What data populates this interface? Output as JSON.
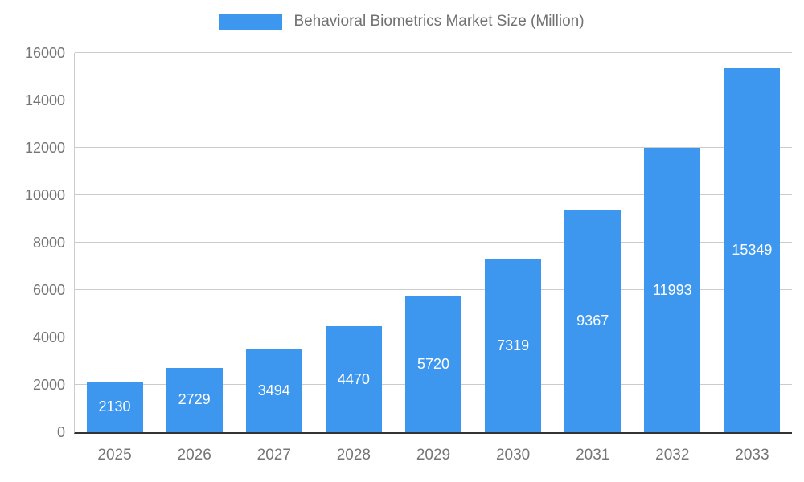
{
  "chart_data": {
    "type": "bar",
    "title": "Behavioral Biometrics Market Size (Million)",
    "categories": [
      "2025",
      "2026",
      "2027",
      "2028",
      "2029",
      "2030",
      "2031",
      "2032",
      "2033"
    ],
    "values": [
      2130,
      2729,
      3494,
      4470,
      5720,
      7319,
      9367,
      11993,
      15349
    ],
    "xlabel": "",
    "ylabel": "",
    "ylim": [
      0,
      16000
    ],
    "yticks": [
      0,
      2000,
      4000,
      6000,
      8000,
      10000,
      12000,
      14000,
      16000
    ],
    "grid": true,
    "legend_position": "top",
    "bar_color": "#3d97ee",
    "value_label_color": "#ffffff",
    "axis_text_color": "#757575",
    "gridline_color": "#cccccc"
  }
}
